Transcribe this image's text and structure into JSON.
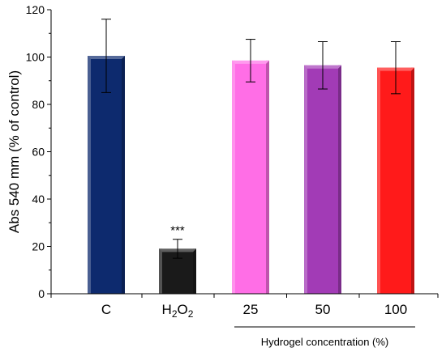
{
  "chart_data": {
    "type": "bar",
    "categories": [
      "C",
      "H2O2",
      "25",
      "50",
      "100"
    ],
    "category_display": [
      {
        "base": "C",
        "sub1": "",
        "mid": "",
        "sub2": ""
      },
      {
        "base": "H",
        "sub1": "2",
        "mid": "O",
        "sub2": "2"
      },
      {
        "base": "25",
        "sub1": "",
        "mid": "",
        "sub2": ""
      },
      {
        "base": "50",
        "sub1": "",
        "mid": "",
        "sub2": ""
      },
      {
        "base": "100",
        "sub1": "",
        "mid": "",
        "sub2": ""
      }
    ],
    "values": [
      100.5,
      19,
      98.5,
      96.5,
      95.5
    ],
    "errors": [
      15.5,
      4,
      9,
      10,
      11
    ],
    "colors": [
      "#0d2a6e",
      "#1a1a1a",
      "#ff6ee6",
      "#a23bb6",
      "#ff1a1a"
    ],
    "ylabel": "Abs 540 mm (% of control)",
    "ylim": [
      0,
      120
    ],
    "yticks": [
      0,
      20,
      40,
      60,
      80,
      100,
      120
    ],
    "annotations": [
      {
        "category": "H2O2",
        "text": "***"
      }
    ],
    "group_label": {
      "text": "Hydrogel concentration (%)",
      "categories": [
        "25",
        "50",
        "100"
      ]
    },
    "grid": false
  }
}
